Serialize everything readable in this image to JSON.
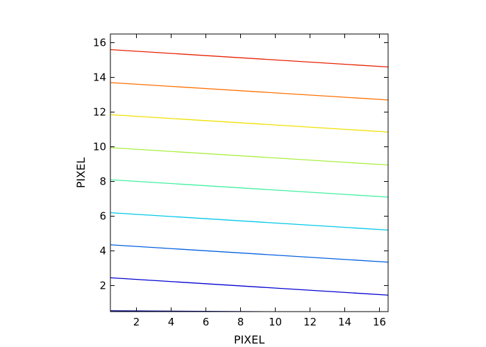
{
  "chart_data": {
    "type": "line",
    "title": "",
    "xlabel": "PIXEL",
    "ylabel": "PIXEL",
    "xlim": [
      0.5,
      16.5
    ],
    "ylim": [
      0.5,
      16.5
    ],
    "xticks": [
      2,
      4,
      6,
      8,
      10,
      12,
      14,
      16
    ],
    "yticks": [
      2,
      4,
      6,
      8,
      10,
      12,
      14,
      16
    ],
    "grid": false,
    "series": [
      {
        "color": "#00008f",
        "x": [
          0.5,
          16.5
        ],
        "y": [
          0.55,
          0.45
        ]
      },
      {
        "color": "#0000d0",
        "x": [
          0.5,
          16.5
        ],
        "y": [
          2.45,
          1.45
        ]
      },
      {
        "color": "#0060e0",
        "x": [
          0.5,
          16.5
        ],
        "y": [
          4.35,
          3.35
        ]
      },
      {
        "color": "#00c8e8",
        "x": [
          0.5,
          16.5
        ],
        "y": [
          6.2,
          5.2
        ]
      },
      {
        "color": "#40f0a0",
        "x": [
          0.5,
          16.5
        ],
        "y": [
          8.1,
          7.1
        ]
      },
      {
        "color": "#a8f040",
        "x": [
          0.5,
          16.5
        ],
        "y": [
          9.95,
          8.95
        ]
      },
      {
        "color": "#f0e000",
        "x": [
          0.5,
          16.5
        ],
        "y": [
          11.85,
          10.85
        ]
      },
      {
        "color": "#ff7000",
        "x": [
          0.5,
          16.5
        ],
        "y": [
          13.7,
          12.7
        ]
      },
      {
        "color": "#e82000",
        "x": [
          0.5,
          16.5
        ],
        "y": [
          15.6,
          14.6
        ]
      }
    ]
  }
}
